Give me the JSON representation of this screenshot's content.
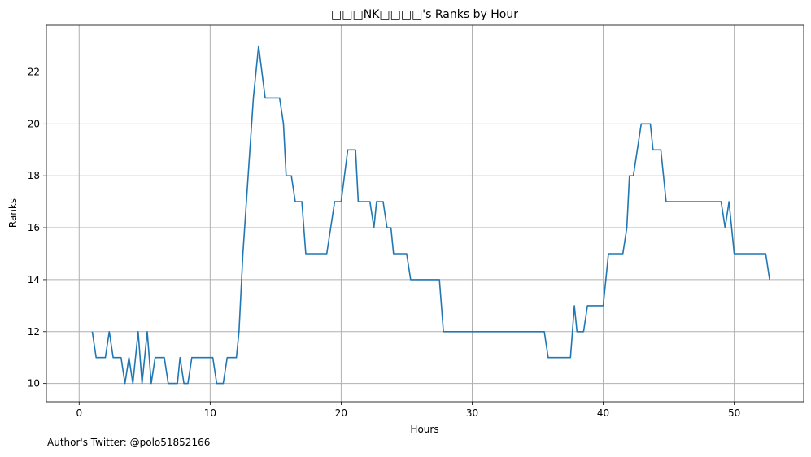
{
  "chart_data": {
    "type": "line",
    "title": "□□□NK□□□□'s Ranks by Hour",
    "xlabel": "Hours",
    "ylabel": "Ranks",
    "xlim": [
      -2.5,
      55.3
    ],
    "ylim": [
      9.3,
      23.8
    ],
    "xticks": [
      0,
      10,
      20,
      30,
      40,
      50
    ],
    "yticks": [
      10,
      12,
      14,
      16,
      18,
      20,
      22
    ],
    "grid": true,
    "line_color": "#1f77b4",
    "grid_color": "#b0b0b0",
    "series": [
      {
        "x": [
          1,
          1.3,
          2,
          2.3,
          2.6,
          3.2,
          3.5,
          3.8,
          4.1,
          4.5,
          4.8,
          5.2,
          5.5,
          5.8,
          6.5,
          6.8,
          7.5,
          7.7,
          8,
          8.3,
          8.6,
          10.2,
          10.5,
          11,
          11.3,
          12,
          12.2,
          12.5,
          13.3,
          13.7,
          14.2,
          15.3,
          15.6,
          15.8,
          16.2,
          16.5,
          17,
          17.3,
          18,
          18.9,
          19.5,
          20,
          20.5,
          21.1,
          21.3,
          22.2,
          22.5,
          22.7,
          23.2,
          23.5,
          23.8,
          24,
          24.4,
          25,
          25.3,
          27.5,
          27.8,
          35.5,
          35.8,
          37.5,
          37.8,
          38,
          38.5,
          38.8,
          40,
          40.4,
          40.8,
          41.5,
          41.8,
          42,
          42.3,
          42.9,
          43.6,
          43.8,
          44.4,
          44.8,
          45.5,
          49,
          49.3,
          49.6,
          50,
          50.3,
          52.4,
          52.7
        ],
        "y": [
          12,
          11,
          11,
          12,
          11,
          11,
          10,
          11,
          10,
          12,
          10,
          12,
          10,
          11,
          11,
          10,
          10,
          11,
          10,
          10,
          11,
          11,
          10,
          10,
          11,
          11,
          12,
          15,
          21,
          23,
          21,
          21,
          20,
          18,
          18,
          17,
          17,
          15,
          15,
          15,
          17,
          17,
          19,
          19,
          17,
          17,
          16,
          17,
          17,
          16,
          16,
          15,
          15,
          15,
          14,
          14,
          12,
          12,
          11,
          11,
          13,
          12,
          12,
          13,
          13,
          15,
          15,
          15,
          16,
          18,
          18,
          20,
          20,
          19,
          19,
          17,
          17,
          17,
          16,
          17,
          15,
          15,
          15,
          14
        ]
      }
    ]
  },
  "footer": {
    "text": "Author's Twitter: @polo51852166"
  }
}
